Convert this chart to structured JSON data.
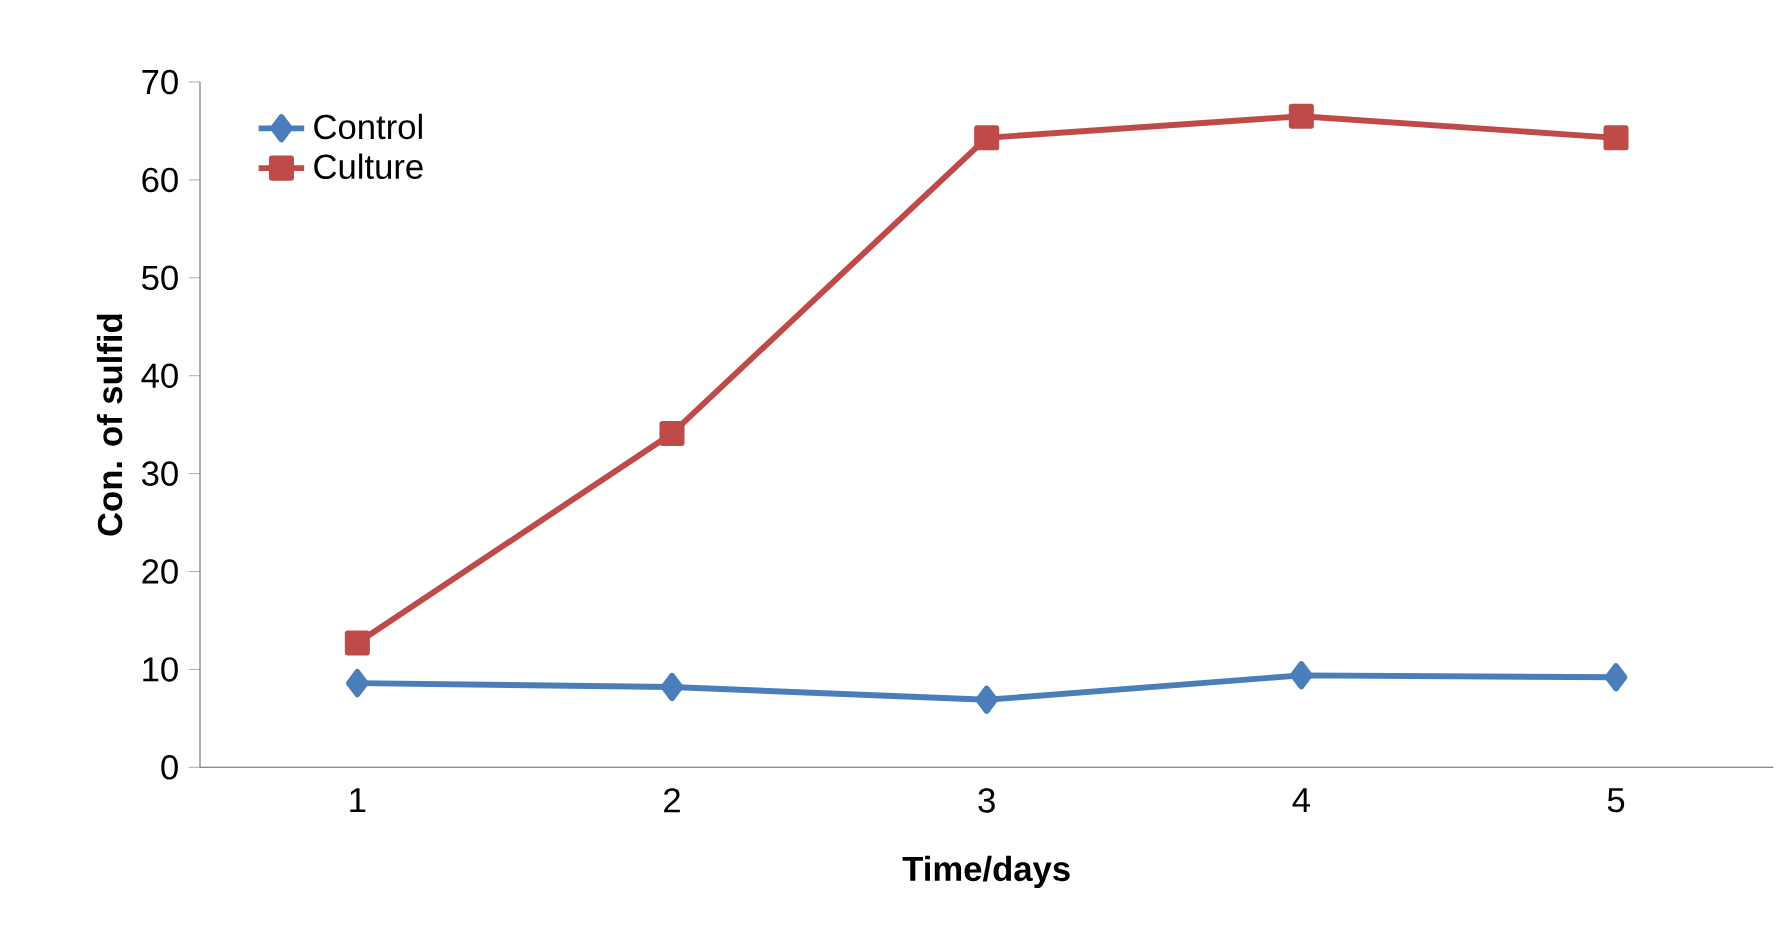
{
  "chart_data": {
    "type": "line",
    "xlabel": "Time/days",
    "ylabel": "Con. of sulfid",
    "categories": [
      "1",
      "2",
      "3",
      "4",
      "5"
    ],
    "ylim": [
      0,
      70
    ],
    "yticks": [
      0,
      10,
      20,
      30,
      40,
      50,
      60,
      70
    ],
    "grid": false,
    "legend": "top left",
    "line_style": "solid",
    "series": [
      {
        "name": "Control",
        "color": "#4a7ebb",
        "marker": "diamond",
        "values": [
          8.6,
          8.2,
          6.9,
          9.4,
          9.2
        ]
      },
      {
        "name": "Culture",
        "color": "#be4b48",
        "marker": "square",
        "values": [
          12.7,
          34.1,
          64.3,
          66.5,
          64.3
        ]
      }
    ]
  }
}
